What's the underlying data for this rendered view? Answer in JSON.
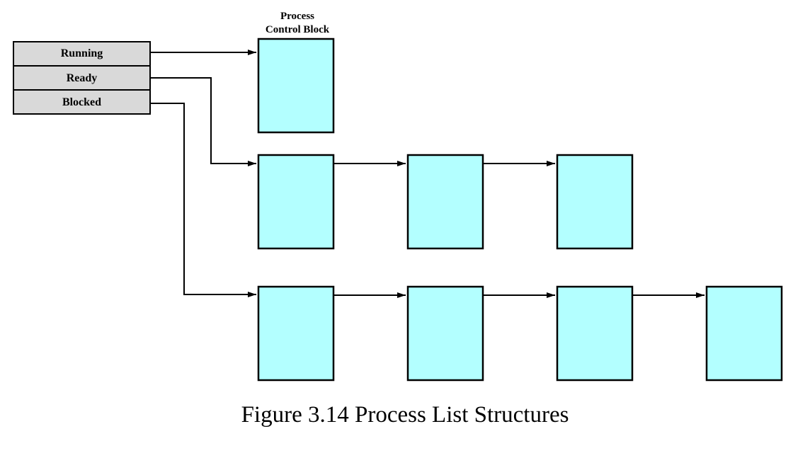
{
  "pcb_label": {
    "line1": "Process",
    "line2": "Control Block"
  },
  "states": [
    {
      "label": "Running",
      "pcb_count": 1
    },
    {
      "label": "Ready",
      "pcb_count": 3
    },
    {
      "label": "Blocked",
      "pcb_count": 4
    }
  ],
  "caption": "Figure 3.14  Process List Structures",
  "colors": {
    "pcb_fill": "#b3ffff",
    "state_fill": "#d9d9d9",
    "stroke": "#000000"
  }
}
